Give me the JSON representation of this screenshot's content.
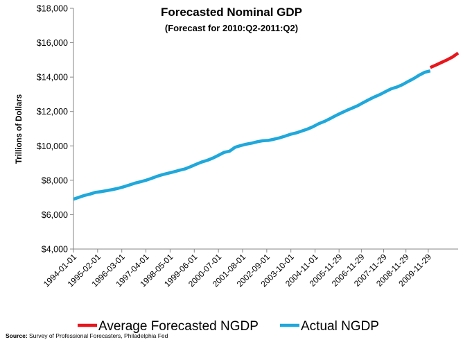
{
  "chart_data": {
    "type": "line",
    "title": "Forecasted Nominal GDP",
    "subtitle": "(Forecast for  2010:Q2-2011:Q2)",
    "xlabel": "",
    "ylabel": "Trillions of Dollars",
    "ylim": [
      4000,
      18000
    ],
    "yticks": [
      "$4,000",
      "$6,000",
      "$8,000",
      "$10,000",
      "$12,000",
      "$14,000",
      "$16,000",
      "$18,000"
    ],
    "ytick_values": [
      4000,
      6000,
      8000,
      10000,
      12000,
      14000,
      16000,
      18000
    ],
    "xticks": [
      "1994-01-01",
      "1995-02-01",
      "1996-03-01",
      "1997-04-01",
      "1998-05-01",
      "1999-06-01",
      "2000-07-01",
      "2001-08-01",
      "2002-09-01",
      "2003-10-01",
      "2004-11-01",
      "2005-11-29",
      "2006-11-29",
      "2007-11-29",
      "2008-11-29",
      "2009-11-29"
    ],
    "xtick_values": [
      1994.0,
      1995.083,
      1996.167,
      1997.25,
      1998.333,
      1999.417,
      2000.5,
      2001.583,
      2002.667,
      2003.75,
      2004.833,
      2005.91,
      2006.91,
      2007.91,
      2008.91,
      2009.91
    ],
    "xlim": [
      1994.0,
      2011.25
    ],
    "grid": false,
    "legend_position": "bottom",
    "series": [
      {
        "name": "Actual NGDP",
        "color": "#1fa8db",
        "x": [
          1994.0,
          1994.25,
          1994.5,
          1994.75,
          1995.0,
          1995.25,
          1995.5,
          1995.75,
          1996.0,
          1996.25,
          1996.5,
          1996.75,
          1997.0,
          1997.25,
          1997.5,
          1997.75,
          1998.0,
          1998.25,
          1998.5,
          1998.75,
          1999.0,
          1999.25,
          1999.5,
          1999.75,
          2000.0,
          2000.25,
          2000.5,
          2000.75,
          2001.0,
          2001.25,
          2001.5,
          2001.75,
          2002.0,
          2002.25,
          2002.5,
          2002.75,
          2003.0,
          2003.25,
          2003.5,
          2003.75,
          2004.0,
          2004.25,
          2004.5,
          2004.75,
          2005.0,
          2005.25,
          2005.5,
          2005.75,
          2006.0,
          2006.25,
          2006.5,
          2006.75,
          2007.0,
          2007.25,
          2007.5,
          2007.75,
          2008.0,
          2008.25,
          2008.5,
          2008.75,
          2009.0,
          2009.25,
          2009.5,
          2009.75,
          2010.0
        ],
        "values": [
          6900,
          7010,
          7120,
          7200,
          7300,
          7340,
          7400,
          7460,
          7530,
          7620,
          7720,
          7830,
          7910,
          8000,
          8110,
          8230,
          8330,
          8410,
          8490,
          8580,
          8660,
          8790,
          8930,
          9060,
          9160,
          9290,
          9450,
          9620,
          9690,
          9920,
          10020,
          10100,
          10160,
          10240,
          10300,
          10320,
          10390,
          10470,
          10570,
          10680,
          10760,
          10870,
          10980,
          11120,
          11290,
          11420,
          11580,
          11750,
          11910,
          12060,
          12200,
          12340,
          12520,
          12690,
          12850,
          12990,
          13160,
          13320,
          13420,
          13560,
          13740,
          13910,
          14110,
          14280,
          14360
        ]
      },
      {
        "name": "Average Forecasted NGDP",
        "color": "#e8161c",
        "x": [
          2010.0,
          2010.25,
          2010.5,
          2010.75,
          2011.0,
          2011.25
        ],
        "values": [
          14560,
          14700,
          14850,
          15000,
          15170,
          15400
        ]
      }
    ],
    "source_label": "Source:",
    "source_text": " Survey of Professional Forecasters, Philadelphia Fed"
  }
}
